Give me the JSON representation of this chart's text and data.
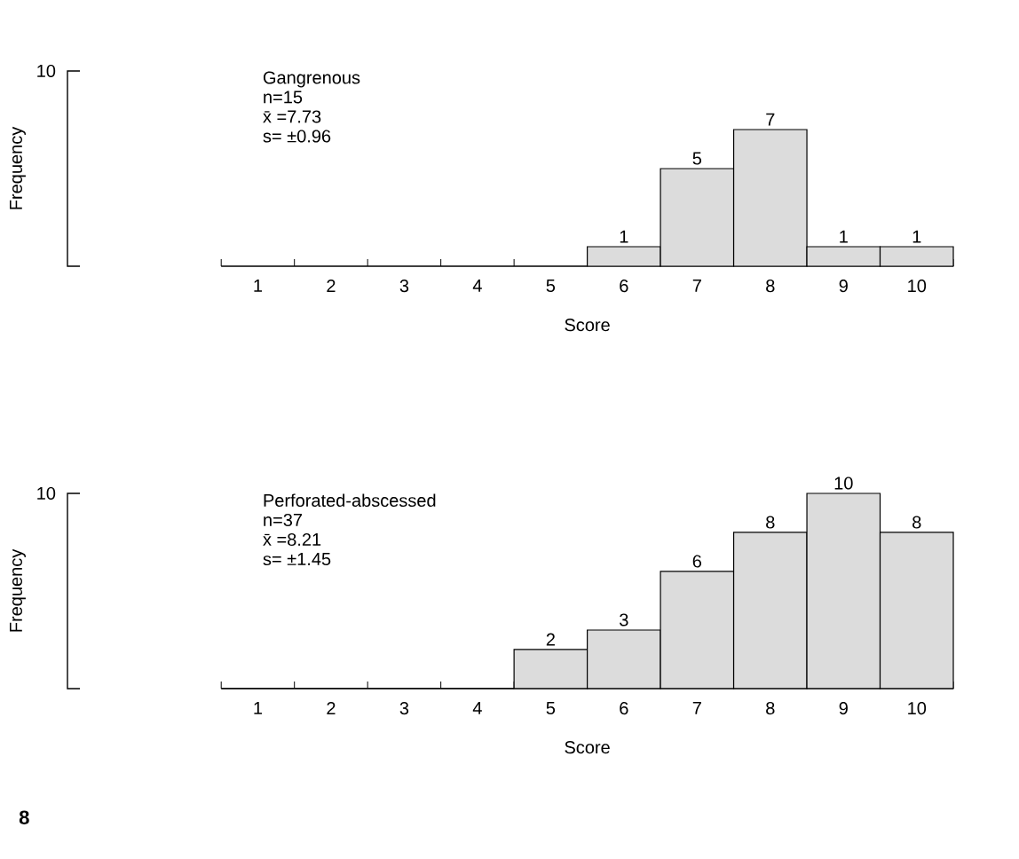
{
  "chart_data": [
    {
      "type": "bar",
      "categories": [
        "1",
        "2",
        "3",
        "4",
        "5",
        "6",
        "7",
        "8",
        "9",
        "10"
      ],
      "values": [
        0,
        0,
        0,
        0,
        0,
        1,
        5,
        7,
        1,
        1
      ],
      "value_labels": [
        null,
        null,
        null,
        null,
        null,
        "1",
        "5",
        "7",
        "1",
        "1"
      ],
      "color": "#dcdcdc",
      "xlabel": "Score",
      "ylabel": "Frequency",
      "annotations": [
        "Gangrenous",
        "n=15",
        "x̄ =7.73",
        "s= ±0.96",
        "10"
      ]
    },
    {
      "type": "bar",
      "categories": [
        "1",
        "2",
        "3",
        "4",
        "5",
        "6",
        "7",
        "8",
        "9",
        "10"
      ],
      "values": [
        0,
        0,
        0,
        0,
        2,
        3,
        6,
        8,
        10,
        8
      ],
      "value_labels": [
        null,
        null,
        null,
        null,
        "2",
        "3",
        "6",
        "8",
        "10",
        "8"
      ],
      "color": "#dcdcdc",
      "xlabel": "Score",
      "ylabel": "Frequency",
      "annotations": [
        "Perforated-abscessed",
        "n=37",
        "x̄ =8.21",
        "s= ±1.45",
        "10",
        "8"
      ]
    }
  ]
}
